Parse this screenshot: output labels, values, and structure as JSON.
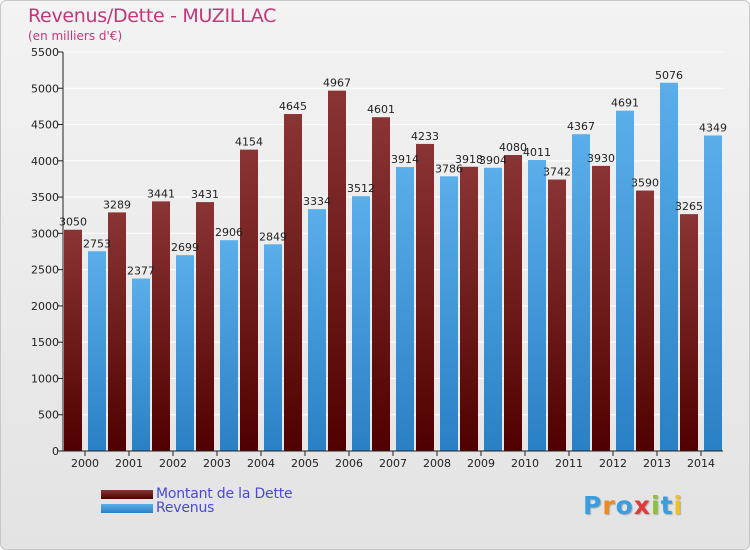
{
  "header": {
    "title": "Revenus/Dette - MUZILLAC",
    "subtitle": "(en milliers d'€)"
  },
  "logo": {
    "text": "Proxiti",
    "letter_colors": [
      "#3a9de0",
      "#f08a1c",
      "#3a9de0",
      "#e23a3a",
      "#8ac23a",
      "#3a9de0",
      "#f0c020"
    ]
  },
  "colors": {
    "dette_top": "#8a3535",
    "dette_bottom": "#500000",
    "revenus_top": "#5aaeea",
    "revenus_bottom": "#2a80c4",
    "grid": "#ffffff",
    "axis": "#222222"
  },
  "chart_data": {
    "type": "bar",
    "title": "Revenus/Dette - MUZILLAC",
    "subtitle": "(en milliers d'€)",
    "categories": [
      "2000",
      "2001",
      "2002",
      "2003",
      "2004",
      "2005",
      "2006",
      "2007",
      "2008",
      "2009",
      "2010",
      "2011",
      "2012",
      "2013",
      "2014"
    ],
    "series": [
      {
        "name": "Montant de la Dette",
        "values": [
          3050,
          3289,
          3441,
          3431,
          4154,
          4645,
          4967,
          4601,
          4233,
          3918,
          4080,
          3742,
          3930,
          3590,
          3265
        ],
        "labels": [
          "3050",
          "3289",
          "3441",
          "3431",
          "4154",
          "4645",
          "4967",
          "4601",
          "4233",
          "3918",
          "4080",
          "3742",
          "3930",
          "3590",
          "3265"
        ]
      },
      {
        "name": "Revenus",
        "values": [
          2753,
          2377,
          2699,
          2906,
          2849,
          3334,
          3512,
          3914,
          3786,
          3904,
          4011,
          4367,
          4691,
          5076,
          4349
        ],
        "labels": [
          "2753",
          "2377",
          "2699",
          "2906",
          "2849",
          "3334",
          "3512",
          "3914",
          "3786",
          "3904",
          "4011",
          "4367",
          "4691",
          "5076",
          "4349"
        ]
      }
    ],
    "ylim": [
      0,
      5500
    ],
    "yticks": [
      0,
      500,
      1000,
      1500,
      2000,
      2500,
      3000,
      3500,
      4000,
      4500,
      5000,
      5500
    ],
    "grid": true,
    "legend_position": "bottom-left"
  }
}
